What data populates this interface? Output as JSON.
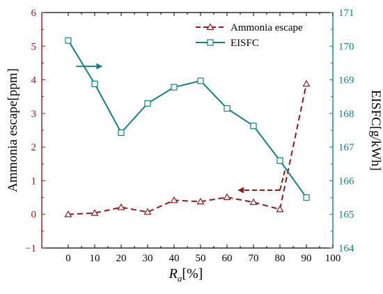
{
  "chart_data": {
    "type": "line",
    "xlabel_main": "R",
    "xlabel_sub": "a",
    "xlabel_unit": "[%]",
    "ylabel_left": "Ammonia escape[ppm]",
    "ylabel_right": "EISFC[g/kWh]",
    "xlim": [
      -10,
      100
    ],
    "ylim_left": [
      -1,
      6
    ],
    "ylim_right": [
      164,
      171
    ],
    "x_ticks": [
      0,
      10,
      20,
      30,
      40,
      50,
      60,
      70,
      80,
      90,
      100
    ],
    "left_ticks": [
      -1,
      0,
      1,
      2,
      3,
      4,
      5,
      6
    ],
    "right_ticks": [
      164,
      165,
      166,
      167,
      168,
      169,
      170,
      171
    ],
    "colors": {
      "ammonia": "#8b1a1a",
      "eisfc": "#138080",
      "axis": "#000000",
      "left_axis": "#8b1a1a",
      "right_axis": "#138080"
    },
    "series": [
      {
        "name": "Ammonia escape",
        "axis": "left",
        "style": "dashed",
        "marker": "triangle",
        "x": [
          0,
          10,
          20,
          30,
          40,
          50,
          60,
          70,
          80,
          90
        ],
        "y": [
          0.0,
          0.04,
          0.21,
          0.07,
          0.42,
          0.38,
          0.51,
          0.36,
          0.15,
          3.88
        ]
      },
      {
        "name": "EISFC",
        "axis": "right",
        "style": "solid",
        "marker": "square",
        "x": [
          0,
          10,
          20,
          30,
          40,
          50,
          60,
          70,
          80,
          90
        ],
        "y": [
          170.17,
          168.88,
          167.43,
          168.3,
          168.78,
          168.97,
          168.15,
          167.63,
          166.6,
          165.5
        ]
      }
    ],
    "legend_position": "top-right",
    "annotations": [
      {
        "series": "EISFC",
        "direction": "right",
        "x_from": 3,
        "x_to": 13,
        "y_left": 4.4
      },
      {
        "series": "Ammonia escape",
        "direction": "left",
        "x_from": 80,
        "x_to": 64,
        "y_left": 0.72,
        "elbow_to_x": 82,
        "elbow_to_y": 1.35
      }
    ]
  }
}
